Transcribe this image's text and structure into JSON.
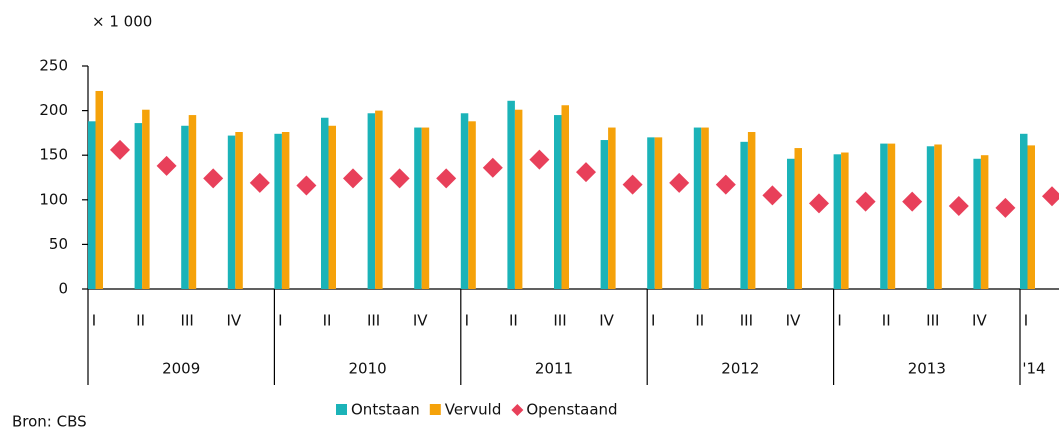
{
  "chart_data": {
    "type": "bar",
    "unit_label": "× 1 000",
    "source": "Bron: CBS",
    "categories": [
      "I",
      "II",
      "III",
      "IV",
      "I",
      "II",
      "III",
      "IV",
      "I",
      "II",
      "III",
      "IV",
      "I",
      "II",
      "III",
      "IV",
      "I",
      "II",
      "III",
      "IV",
      "I"
    ],
    "groups": [
      "2009",
      "2010",
      "2011",
      "2012",
      "2013",
      "'14"
    ],
    "series": [
      {
        "name": "Ontstaan",
        "color": "#1bb3b8",
        "marker": "bar",
        "values": [
          188,
          186,
          183,
          172,
          174,
          192,
          197,
          181,
          197,
          211,
          195,
          167,
          170,
          181,
          165,
          146,
          151,
          163,
          160,
          146,
          174
        ]
      },
      {
        "name": "Vervuld",
        "color": "#f5a20a",
        "marker": "bar",
        "values": [
          222,
          201,
          195,
          176,
          176,
          183,
          200,
          181,
          188,
          201,
          206,
          181,
          170,
          181,
          176,
          158,
          153,
          163,
          162,
          150,
          161
        ]
      },
      {
        "name": "Openstaand",
        "color": "#e8405a",
        "marker": "diamond",
        "values": [
          156,
          138,
          124,
          119,
          116,
          124,
          124,
          124,
          136,
          145,
          131,
          117,
          119,
          117,
          105,
          96,
          98,
          98,
          93,
          91,
          104
        ]
      }
    ],
    "ylim": [
      0,
      250
    ],
    "yticks": [
      0,
      50,
      100,
      150,
      200,
      250
    ],
    "grid": false
  }
}
